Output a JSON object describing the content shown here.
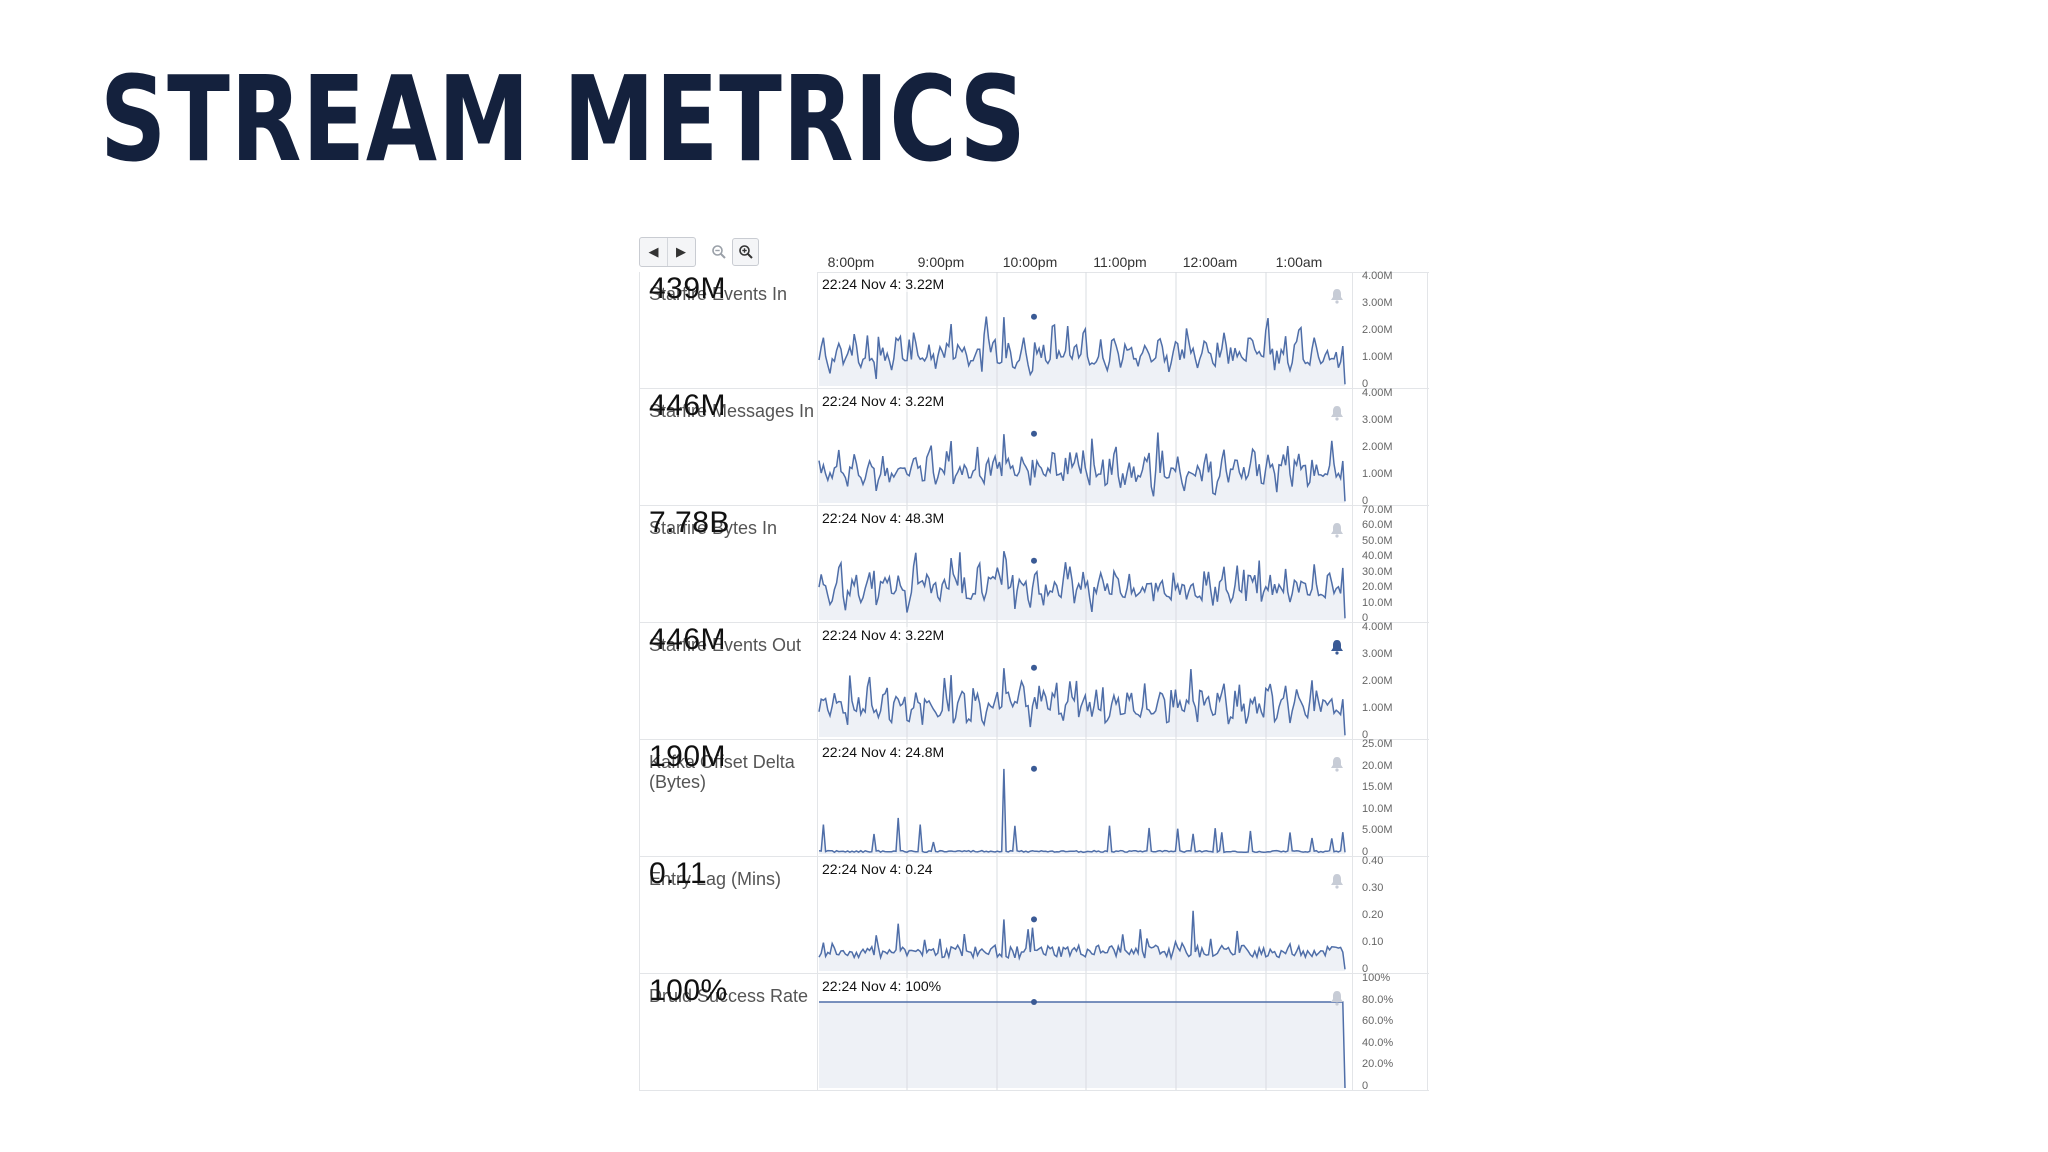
{
  "slide": {
    "title": "STREAM METRICS"
  },
  "toolbar": {
    "prev_icon": "triangle-left-icon",
    "next_icon": "triangle-right-icon",
    "zoom_out_icon": "zoom-out-icon",
    "zoom_in_icon": "zoom-in-icon"
  },
  "time_axis": [
    "8:00pm",
    "9:00pm",
    "10:00pm",
    "11:00pm",
    "12:00am",
    "1:00am"
  ],
  "colors": {
    "line": "#4f6ea8",
    "fill": "#eef1f6",
    "grid": "#d9dce1",
    "bell": "#c7ccd6",
    "bell_active": "#3a5a95",
    "title": "#14213d"
  },
  "panels": [
    {
      "title": "Starfire Events In",
      "value": "439M",
      "hover": "22:24 Nov  4: 3.22M",
      "bell_active": false,
      "y_max": 4,
      "y_ticks": [
        {
          "label": "4.00M",
          "v": 4
        },
        {
          "label": "3.00M",
          "v": 3
        },
        {
          "label": "2.00M",
          "v": 2
        },
        {
          "label": "1.00M",
          "v": 1
        },
        {
          "label": "0",
          "v": 0
        }
      ],
      "chart_data": {
        "type": "line",
        "x_start": "7:35pm",
        "x_end": "1:30am",
        "hover_at": "22:24",
        "hover_value": 3.22,
        "pattern": "noisy",
        "ylim": [
          0,
          4
        ]
      }
    },
    {
      "title": "Starfire Messages In",
      "value": "446M",
      "hover": "22:24 Nov  4: 3.22M",
      "bell_active": false,
      "y_max": 4,
      "y_ticks": [
        {
          "label": "4.00M",
          "v": 4
        },
        {
          "label": "3.00M",
          "v": 3
        },
        {
          "label": "2.00M",
          "v": 2
        },
        {
          "label": "1.00M",
          "v": 1
        },
        {
          "label": "0",
          "v": 0
        }
      ],
      "chart_data": {
        "type": "line",
        "x_start": "7:35pm",
        "x_end": "1:30am",
        "hover_at": "22:24",
        "hover_value": 3.22,
        "pattern": "noisy",
        "ylim": [
          0,
          4
        ]
      }
    },
    {
      "title": "Starfire Bytes In",
      "value": "7.78B",
      "hover": "22:24 Nov  4: 48.3M",
      "bell_active": false,
      "y_max": 70,
      "y_ticks": [
        {
          "label": "70.0M",
          "v": 70
        },
        {
          "label": "60.0M",
          "v": 60
        },
        {
          "label": "50.0M",
          "v": 50
        },
        {
          "label": "40.0M",
          "v": 40
        },
        {
          "label": "30.0M",
          "v": 30
        },
        {
          "label": "20.0M",
          "v": 20
        },
        {
          "label": "10.0M",
          "v": 10
        },
        {
          "label": "0",
          "v": 0
        }
      ],
      "chart_data": {
        "type": "line",
        "x_start": "7:35pm",
        "x_end": "1:30am",
        "hover_at": "22:24",
        "hover_value": 48.3,
        "pattern": "noisy",
        "ylim": [
          0,
          70
        ]
      }
    },
    {
      "title": "Starfire Events Out",
      "value": "446M",
      "hover": "22:24 Nov  4: 3.22M",
      "bell_active": true,
      "y_max": 4,
      "y_ticks": [
        {
          "label": "4.00M",
          "v": 4
        },
        {
          "label": "3.00M",
          "v": 3
        },
        {
          "label": "2.00M",
          "v": 2
        },
        {
          "label": "1.00M",
          "v": 1
        },
        {
          "label": "0",
          "v": 0
        }
      ],
      "chart_data": {
        "type": "line",
        "x_start": "7:35pm",
        "x_end": "1:30am",
        "hover_at": "22:24",
        "hover_value": 3.22,
        "pattern": "noisy",
        "ylim": [
          0,
          4
        ]
      }
    },
    {
      "title": "Kafka Offset Delta (Bytes)",
      "value": "190M",
      "hover": "22:24 Nov  4: 24.8M",
      "bell_active": false,
      "y_max": 25,
      "y_ticks": [
        {
          "label": "25.0M",
          "v": 25
        },
        {
          "label": "20.0M",
          "v": 20
        },
        {
          "label": "15.0M",
          "v": 15
        },
        {
          "label": "10.0M",
          "v": 10
        },
        {
          "label": "5.00M",
          "v": 5
        },
        {
          "label": "0",
          "v": 0
        }
      ],
      "chart_data": {
        "type": "line",
        "x_start": "7:35pm",
        "x_end": "1:30am",
        "hover_at": "22:24",
        "hover_value": 24.8,
        "pattern": "spikes",
        "ylim": [
          0,
          25
        ]
      }
    },
    {
      "title": "Entry Lag (Mins)",
      "value": "0.11",
      "hover": "22:24 Nov  4: 0.24",
      "bell_active": false,
      "y_max": 0.4,
      "y_ticks": [
        {
          "label": "0.40",
          "v": 0.4
        },
        {
          "label": "0.30",
          "v": 0.3
        },
        {
          "label": "0.20",
          "v": 0.2
        },
        {
          "label": "0.10",
          "v": 0.1
        },
        {
          "label": "0",
          "v": 0
        }
      ],
      "chart_data": {
        "type": "line",
        "x_start": "7:35pm",
        "x_end": "1:30am",
        "hover_at": "22:24",
        "hover_value": 0.24,
        "pattern": "lag",
        "ylim": [
          0,
          0.4
        ]
      }
    },
    {
      "title": "Druid Success Rate",
      "value": "100%",
      "hover": "22:24 Nov  4: 100%",
      "bell_active": false,
      "y_max": 100,
      "y_ticks": [
        {
          "label": "100%",
          "v": 100
        },
        {
          "label": "80.0%",
          "v": 80
        },
        {
          "label": "60.0%",
          "v": 60
        },
        {
          "label": "40.0%",
          "v": 40
        },
        {
          "label": "20.0%",
          "v": 20
        },
        {
          "label": "0",
          "v": 0
        }
      ],
      "chart_data": {
        "type": "line",
        "x_start": "7:35pm",
        "x_end": "1:30am",
        "hover_at": "22:24",
        "hover_value": 100,
        "pattern": "flat",
        "ylim": [
          0,
          100
        ]
      }
    }
  ]
}
